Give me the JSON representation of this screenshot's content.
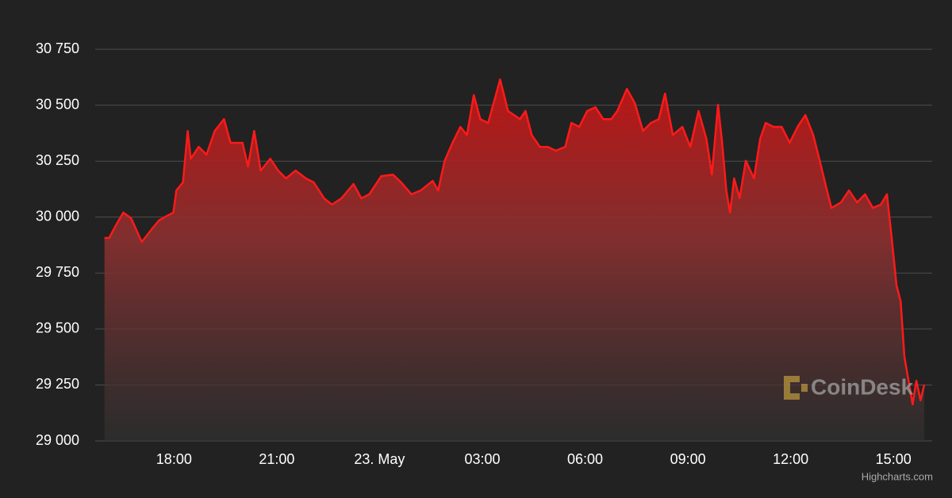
{
  "chart_data": {
    "type": "area",
    "color": "#ff1a1a",
    "grid": true,
    "watermark": "CoinDesk",
    "credits": "Highcharts.com",
    "xlim": [
      -8.3,
      16.13
    ],
    "xticks": [
      {
        "value": -6,
        "label": "18:00"
      },
      {
        "value": -3,
        "label": "21:00"
      },
      {
        "value": 0,
        "label": "23. May"
      },
      {
        "value": 3,
        "label": "03:00"
      },
      {
        "value": 6,
        "label": "06:00"
      },
      {
        "value": 9,
        "label": "09:00"
      },
      {
        "value": 12,
        "label": "12:00"
      },
      {
        "value": 15,
        "label": "15:00"
      }
    ],
    "ylim": [
      29000,
      30800
    ],
    "yticks": [
      {
        "value": 29000,
        "label": "29 000"
      },
      {
        "value": 29250,
        "label": "29 250"
      },
      {
        "value": 29500,
        "label": "29 500"
      },
      {
        "value": 29750,
        "label": "29 750"
      },
      {
        "value": 30000,
        "label": "30 000"
      },
      {
        "value": 30250,
        "label": "30 250"
      },
      {
        "value": 30500,
        "label": "30 500"
      },
      {
        "value": 30750,
        "label": "30 750"
      }
    ],
    "x": [
      -8.03,
      -7.89,
      -7.71,
      -7.48,
      -7.25,
      -6.94,
      -6.67,
      -6.44,
      -6.2,
      -6.02,
      -5.93,
      -5.74,
      -5.6,
      -5.51,
      -5.28,
      -5.05,
      -4.81,
      -4.54,
      -4.35,
      -4.0,
      -3.84,
      -3.66,
      -3.47,
      -3.19,
      -2.96,
      -2.73,
      -2.45,
      -2.15,
      -1.92,
      -1.62,
      -1.39,
      -1.11,
      -0.76,
      -0.53,
      -0.3,
      0.05,
      0.39,
      0.63,
      0.93,
      1.2,
      1.55,
      1.71,
      1.9,
      2.13,
      2.36,
      2.55,
      2.75,
      2.94,
      3.17,
      3.33,
      3.52,
      3.75,
      4.1,
      4.26,
      4.44,
      4.68,
      4.91,
      5.14,
      5.42,
      5.6,
      5.83,
      6.06,
      6.3,
      6.53,
      6.76,
      6.94,
      7.22,
      7.45,
      7.69,
      7.92,
      8.15,
      8.33,
      8.56,
      8.84,
      9.07,
      9.31,
      9.54,
      9.7,
      9.88,
      10.0,
      10.12,
      10.23,
      10.35,
      10.51,
      10.69,
      10.93,
      11.11,
      11.27,
      11.5,
      11.74,
      11.97,
      12.2,
      12.43,
      12.66,
      12.89,
      13.06,
      13.19,
      13.47,
      13.7,
      13.94,
      14.17,
      14.4,
      14.63,
      14.81,
      14.95,
      15.09,
      15.21,
      15.32,
      15.44,
      15.56,
      15.67,
      15.79,
      15.9
    ],
    "values": [
      29907,
      29907,
      29960,
      30020,
      29995,
      29889,
      29942,
      29985,
      30006,
      30020,
      30119,
      30155,
      30385,
      30261,
      30314,
      30279,
      30385,
      30438,
      30332,
      30332,
      30226,
      30385,
      30208,
      30261,
      30208,
      30173,
      30208,
      30173,
      30155,
      30084,
      30056,
      30084,
      30148,
      30084,
      30102,
      30183,
      30190,
      30155,
      30102,
      30119,
      30162,
      30119,
      30252,
      30332,
      30403,
      30367,
      30545,
      30438,
      30421,
      30509,
      30615,
      30474,
      30438,
      30474,
      30367,
      30314,
      30314,
      30297,
      30314,
      30421,
      30403,
      30474,
      30491,
      30438,
      30438,
      30474,
      30573,
      30509,
      30385,
      30421,
      30438,
      30552,
      30367,
      30403,
      30314,
      30474,
      30350,
      30190,
      30502,
      30332,
      30119,
      30020,
      30173,
      30084,
      30252,
      30173,
      30350,
      30421,
      30403,
      30403,
      30332,
      30403,
      30456,
      30367,
      30226,
      30119,
      30041,
      30066,
      30119,
      30066,
      30102,
      30041,
      30056,
      30102,
      29907,
      29694,
      29623,
      29376,
      29269,
      29163,
      29269,
      29181,
      29252
    ]
  }
}
